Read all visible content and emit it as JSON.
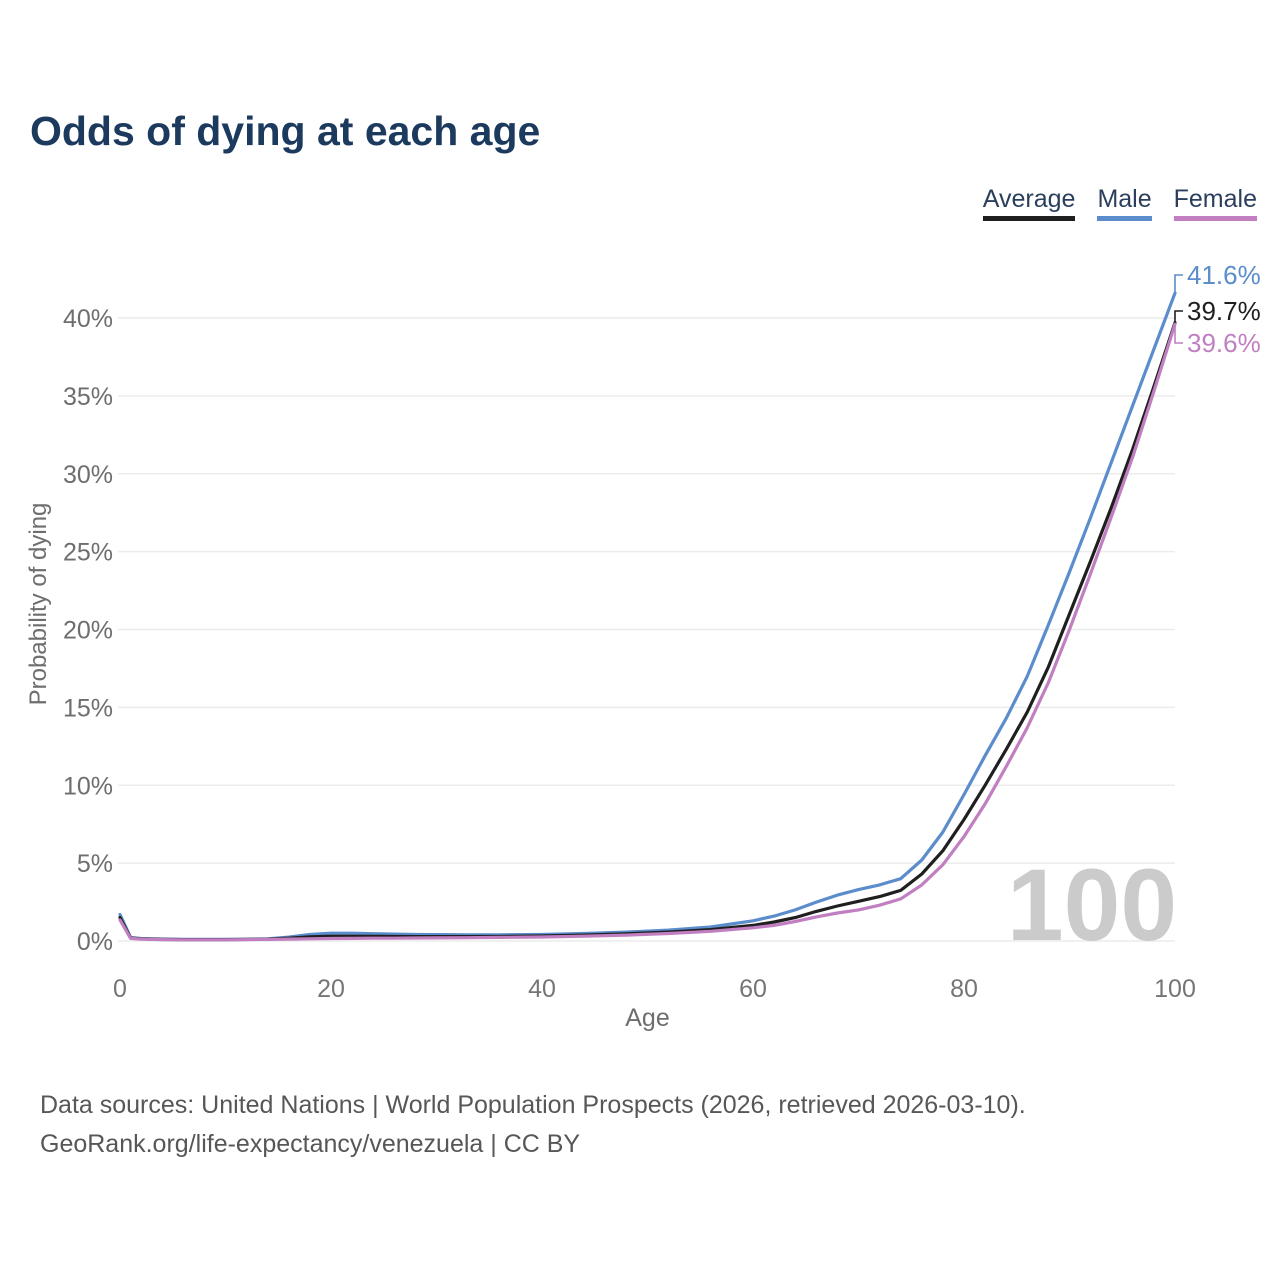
{
  "title": "Odds of dying at each age",
  "legend": {
    "items": [
      {
        "label": "Average",
        "color": "#1f1f1f"
      },
      {
        "label": "Male",
        "color": "#5b8ccb"
      },
      {
        "label": "Female",
        "color": "#c17fc1"
      }
    ]
  },
  "watermark": "100",
  "footer": {
    "line1": "Data sources: United Nations | World Population Prospects (2026, retrieved 2026-03-10).",
    "line2": "GeoRank.org/life-expectancy/venezuela | CC BY"
  },
  "chart_data": {
    "type": "line",
    "title": "Odds of dying at each age",
    "xlabel": "Age",
    "ylabel": "Probability of dying",
    "x_ticks": [
      0,
      20,
      40,
      60,
      80,
      100
    ],
    "y_ticks_percent": [
      0,
      5,
      10,
      15,
      20,
      25,
      30,
      35,
      40
    ],
    "xlim": [
      0,
      100
    ],
    "ylim_percent": [
      0,
      42.5
    ],
    "grid": "horizontal",
    "legend_position": "top-right",
    "x": [
      0,
      1,
      2,
      4,
      6,
      8,
      10,
      12,
      14,
      16,
      18,
      20,
      22,
      24,
      26,
      28,
      30,
      33,
      36,
      40,
      44,
      48,
      52,
      56,
      60,
      62,
      64,
      66,
      68,
      70,
      72,
      74,
      76,
      78,
      80,
      82,
      84,
      86,
      88,
      90,
      92,
      94,
      96,
      98,
      100
    ],
    "series": [
      {
        "name": "Male",
        "color": "#5b8ccb",
        "end_label": "41.6%",
        "values": [
          1.7,
          0.22,
          0.16,
          0.12,
          0.1,
          0.1,
          0.1,
          0.11,
          0.14,
          0.25,
          0.42,
          0.5,
          0.5,
          0.47,
          0.44,
          0.42,
          0.41,
          0.4,
          0.4,
          0.42,
          0.48,
          0.57,
          0.7,
          0.9,
          1.3,
          1.6,
          2.0,
          2.5,
          2.95,
          3.3,
          3.6,
          4.0,
          5.2,
          7.0,
          9.4,
          11.9,
          14.3,
          17.0,
          20.3,
          23.7,
          27.2,
          30.8,
          34.4,
          38.0,
          41.6
        ]
      },
      {
        "name": "Average",
        "color": "#1f1f1f",
        "end_label": "39.7%",
        "values": [
          1.5,
          0.19,
          0.14,
          0.1,
          0.09,
          0.09,
          0.09,
          0.1,
          0.12,
          0.18,
          0.27,
          0.31,
          0.31,
          0.3,
          0.29,
          0.28,
          0.28,
          0.28,
          0.29,
          0.32,
          0.38,
          0.46,
          0.57,
          0.73,
          1.0,
          1.22,
          1.5,
          1.9,
          2.25,
          2.55,
          2.85,
          3.25,
          4.3,
          5.8,
          7.8,
          10.0,
          12.3,
          14.7,
          17.6,
          21.0,
          24.4,
          27.9,
          31.6,
          35.6,
          39.7
        ]
      },
      {
        "name": "Female",
        "color": "#c17fc1",
        "end_label": "39.6%",
        "values": [
          1.35,
          0.17,
          0.12,
          0.09,
          0.08,
          0.08,
          0.08,
          0.09,
          0.1,
          0.12,
          0.14,
          0.16,
          0.17,
          0.18,
          0.18,
          0.19,
          0.2,
          0.21,
          0.23,
          0.26,
          0.31,
          0.38,
          0.48,
          0.62,
          0.85,
          1.0,
          1.25,
          1.55,
          1.8,
          2.0,
          2.3,
          2.7,
          3.6,
          4.9,
          6.7,
          8.8,
          11.2,
          13.7,
          16.6,
          20.0,
          23.6,
          27.3,
          31.1,
          35.3,
          39.6
        ]
      }
    ]
  }
}
